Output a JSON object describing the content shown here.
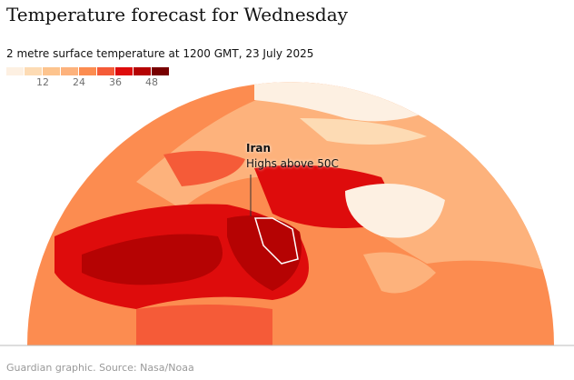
{
  "title": "Temperature forecast for Wednesday",
  "subtitle": "2 metre surface temperature at 1200 GMT, 23 July 2025",
  "legend": {
    "colors": [
      "#fdf0e2",
      "#fddbb4",
      "#fdc48e",
      "#fdb27c",
      "#fc8c50",
      "#f55b38",
      "#de0c0c",
      "#b50303",
      "#780000"
    ],
    "ticks": [
      "12",
      "24",
      "36",
      "48"
    ]
  },
  "annotation": {
    "label": "Iran",
    "text": "Highs above 50C"
  },
  "source": "Guardian graphic. Source: Nasa/Noaa"
}
